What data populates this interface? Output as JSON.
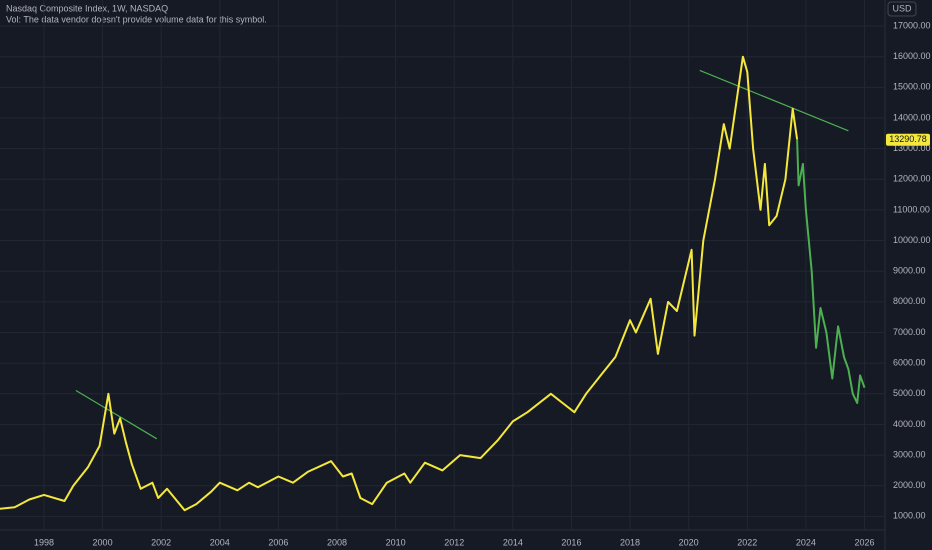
{
  "chart_data": {
    "type": "line",
    "title": "Nasdaq Composite Index, 1W, NASDAQ",
    "subtitle": "Vol: The data vendor doesn't provide volume data for this symbol.",
    "currency": "USD",
    "last_price": {
      "value": 13290.78,
      "label": "13290.78"
    },
    "last_price_color": "#f5e83c",
    "xlim": [
      1996.5,
      2026.7
    ],
    "xticks": [
      1998,
      2000,
      2002,
      2004,
      2006,
      2008,
      2010,
      2012,
      2014,
      2016,
      2018,
      2020,
      2022,
      2024,
      2026
    ],
    "ylim": [
      555,
      17850
    ],
    "yticks": [
      {
        "value": 1000,
        "label": "1000.00"
      },
      {
        "value": 2000,
        "label": "2000.00"
      },
      {
        "value": 3000,
        "label": "3000.00"
      },
      {
        "value": 4000,
        "label": "4000.00"
      },
      {
        "value": 5000,
        "label": "5000.00"
      },
      {
        "value": 6000,
        "label": "6000.00"
      },
      {
        "value": 7000,
        "label": "7000.00"
      },
      {
        "value": 8000,
        "label": "8000.00"
      },
      {
        "value": 9000,
        "label": "9000.00"
      },
      {
        "value": 10000,
        "label": "10000.00"
      },
      {
        "value": 11000,
        "label": "11000.00"
      },
      {
        "value": 12000,
        "label": "12000.00"
      },
      {
        "value": 13000,
        "label": "13000.00"
      },
      {
        "value": 14000,
        "label": "14000.00"
      },
      {
        "value": 15000,
        "label": "15000.00"
      },
      {
        "value": 16000,
        "label": "16000.00"
      },
      {
        "value": 17000,
        "label": "17000.00"
      }
    ],
    "grid": true,
    "series": [
      {
        "color": "#f5e83c",
        "x": [
          1996.5,
          1997,
          1997.5,
          1998,
          1998.7,
          1999,
          1999.5,
          1999.9,
          2000.2,
          2000.4,
          2000.6,
          2000.8,
          2001.0,
          2001.3,
          2001.7,
          2001.9,
          2002.2,
          2002.8,
          2003.2,
          2003.7,
          2004.0,
          2004.6,
          2005.0,
          2005.3,
          2006.0,
          2006.5,
          2007.0,
          2007.8,
          2008.2,
          2008.5,
          2008.8,
          2009.2,
          2009.7,
          2010.3,
          2010.5,
          2011.0,
          2011.6,
          2012.2,
          2012.9,
          2013.5,
          2014.0,
          2014.5,
          2015.3,
          2015.7,
          2016.1,
          2016.5,
          2017.0,
          2017.5,
          2018.0,
          2018.2,
          2018.7,
          2018.95,
          2019.3,
          2019.6,
          2020.1,
          2020.2,
          2020.5,
          2020.9,
          2021.2,
          2021.4,
          2021.85,
          2022.0,
          2022.2,
          2022.45,
          2022.6,
          2022.75,
          2023.0,
          2023.3,
          2023.55,
          2023.7
        ],
        "values": [
          1250,
          1300,
          1550,
          1700,
          1500,
          2000,
          2600,
          3300,
          5000,
          3700,
          4200,
          3400,
          2700,
          1900,
          2100,
          1600,
          1900,
          1200,
          1400,
          1800,
          2100,
          1850,
          2100,
          1950,
          2300,
          2100,
          2450,
          2800,
          2300,
          2400,
          1600,
          1400,
          2100,
          2400,
          2100,
          2750,
          2500,
          3000,
          2900,
          3500,
          4100,
          4400,
          5000,
          4700,
          4400,
          5000,
          5600,
          6200,
          7400,
          7000,
          8100,
          6300,
          8000,
          7700,
          9700,
          6900,
          10000,
          12000,
          13800,
          13000,
          16000,
          15500,
          13000,
          11000,
          12500,
          10500,
          10800,
          12000,
          14300,
          13300
        ]
      },
      {
        "color": "#4caf50",
        "x": [
          2023.7,
          2023.75,
          2023.9,
          2024.0,
          2024.2,
          2024.35,
          2024.5,
          2024.7,
          2024.9,
          2025.1,
          2025.3,
          2025.45,
          2025.6,
          2025.75,
          2025.85,
          2026.0
        ],
        "values": [
          13300,
          11800,
          12500,
          11000,
          9000,
          6500,
          7800,
          7000,
          5500,
          7200,
          6200,
          5800,
          5000,
          4700,
          5600,
          5200
        ]
      }
    ],
    "trendlines": [
      {
        "color": "#4caf50",
        "x": [
          1999.09,
          2001.85
        ],
        "values": [
          5106,
          3530
        ]
      },
      {
        "color": "#4caf50",
        "x": [
          2020.38,
          2025.45
        ],
        "values": [
          15553,
          13582
        ]
      }
    ]
  }
}
